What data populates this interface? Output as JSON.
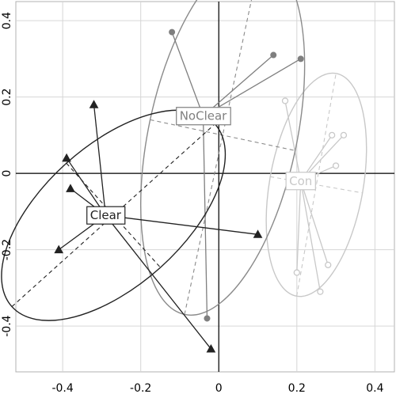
{
  "chart_data": {
    "type": "scatter",
    "title": "",
    "xlabel": "",
    "ylabel": "",
    "xlim": [
      -0.52,
      0.45
    ],
    "ylim": [
      -0.52,
      0.45
    ],
    "xticks": [
      -0.4,
      -0.2,
      0,
      0.2,
      0.4
    ],
    "yticks": [
      -0.4,
      -0.2,
      0,
      0.2,
      0.4
    ],
    "x_tick_labels": [
      "-0.4",
      "-0.2",
      "0",
      "0.2",
      "0.4"
    ],
    "y_tick_labels": [
      "-0.4",
      "-0.2",
      "0",
      "0.2",
      "0.4"
    ],
    "grid": true,
    "legend": "none",
    "series": [
      {
        "name": "Clear",
        "marker": "filled-triangle",
        "color": "#222222",
        "centroid": [
          -0.29,
          -0.11
        ],
        "points": [
          [
            -0.32,
            0.18
          ],
          [
            -0.39,
            0.04
          ],
          [
            -0.38,
            -0.04
          ],
          [
            -0.41,
            -0.2
          ],
          [
            0.1,
            -0.16
          ],
          [
            -0.02,
            -0.46
          ]
        ],
        "ellipse": {
          "center": [
            -0.27,
            -0.11
          ],
          "rx": 0.35,
          "ry": 0.18,
          "angle_deg": -42
        },
        "color_ellipse": "#222222"
      },
      {
        "name": "NoClear",
        "marker": "filled-circle",
        "color": "#7f7f7f",
        "centroid": [
          -0.04,
          0.15
        ],
        "points": [
          [
            -0.12,
            0.37
          ],
          [
            0.14,
            0.31
          ],
          [
            0.21,
            0.3
          ],
          [
            -0.07,
            0.15
          ],
          [
            -0.03,
            -0.38
          ]
        ],
        "ellipse": {
          "center": [
            0.01,
            0.1
          ],
          "rx": 0.47,
          "ry": 0.19,
          "angle_deg": -78
        },
        "color_ellipse": "#8a8a8a"
      },
      {
        "name": "Con",
        "marker": "open-circle",
        "color": "#c8c8c8",
        "centroid": [
          0.21,
          -0.02
        ],
        "points": [
          [
            0.17,
            0.19
          ],
          [
            0.29,
            0.1
          ],
          [
            0.32,
            0.1
          ],
          [
            0.3,
            0.02
          ],
          [
            0.28,
            -0.24
          ],
          [
            0.26,
            -0.31
          ],
          [
            0.2,
            -0.26
          ]
        ],
        "ellipse": {
          "center": [
            0.25,
            -0.03
          ],
          "rx": 0.29,
          "ry": 0.12,
          "angle_deg": -80
        },
        "color_ellipse": "#c8c8c8"
      }
    ]
  }
}
